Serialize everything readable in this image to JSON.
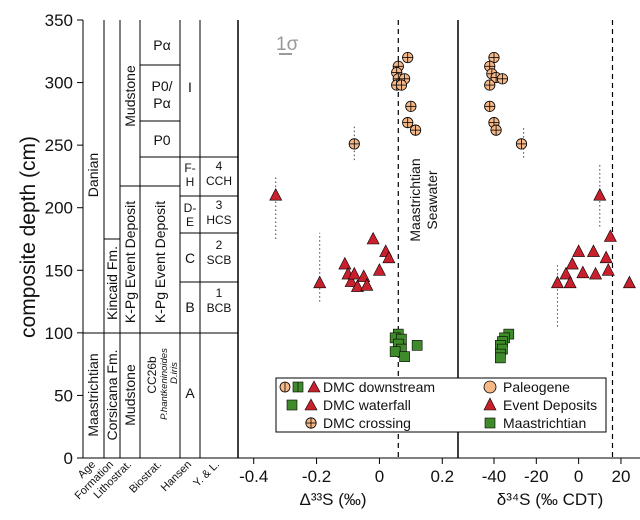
{
  "figure": {
    "ylabel": "composite depth (cm)",
    "yticks": [
      "0",
      "50",
      "100",
      "150",
      "200",
      "250",
      "300",
      "350"
    ],
    "strat_headers": [
      "Age",
      "Formation",
      "Lithostrat.",
      "Biostrat.",
      "Hansen",
      "Y. & L."
    ],
    "age": [
      "Danian",
      "Maastrichtian"
    ],
    "formation": [
      "Kincaid Fm.",
      "Corsicana Fm."
    ],
    "lithostrat": [
      "Mudstone",
      "K-Pg Event Deposit",
      "Mudstone"
    ],
    "biostrat": [
      "Pα",
      "P0/",
      "Pα",
      "P0",
      "K-Pg Event Deposit",
      "CC26b",
      "P.hantkeninoides",
      "D.iris"
    ],
    "hansen": [
      "I",
      "F-",
      "H",
      "D-",
      "E",
      "C",
      "B",
      "A"
    ],
    "yl": [
      "4",
      "CCH",
      "3",
      "HCS",
      "2",
      "SCB",
      "1",
      "BCB"
    ],
    "sigma": "1σ",
    "seawater_label": [
      "Maastrichtian",
      "Seawater"
    ],
    "legend": {
      "downstream": "DMC downstream",
      "waterfall": "DMC waterfall",
      "crossing": "DMC crossing",
      "paleogene": "Paleogene",
      "event": "Event Deposits",
      "maastrichtian": "Maastrichtian"
    },
    "colors": {
      "paleogene": "#f6b887",
      "event": "#c8202c",
      "maastrichtian": "#3f8a2a"
    }
  },
  "chart_data": [
    {
      "type": "scatter",
      "xlabel": "Δ³³S (‰)",
      "ylabel": "composite depth (cm)",
      "xlim": [
        -0.45,
        0.25
      ],
      "ylim": [
        0,
        350
      ],
      "xticks": [
        "-0.4",
        "-0.2",
        "0",
        "0.2"
      ],
      "seawater_x": 0.06,
      "series": [
        {
          "name": "Paleogene",
          "points": [
            [
              0.09,
              320
            ],
            [
              0.06,
              313
            ],
            [
              0.055,
              308
            ],
            [
              0.06,
              303
            ],
            [
              0.08,
              303
            ],
            [
              0.055,
              298
            ],
            [
              0.07,
              298
            ],
            [
              0.1,
              281
            ],
            [
              0.09,
              268
            ],
            [
              0.115,
              262
            ],
            [
              -0.08,
              251
            ]
          ]
        },
        {
          "name": "Event Deposits",
          "points": [
            [
              -0.33,
              210
            ],
            [
              -0.19,
              140
            ],
            [
              0.02,
              165
            ],
            [
              -0.02,
              175
            ],
            [
              -0.11,
              155
            ],
            [
              -0.1,
              147
            ],
            [
              -0.09,
              141
            ],
            [
              -0.08,
              147
            ],
            [
              -0.07,
              137
            ],
            [
              -0.05,
              145
            ],
            [
              -0.04,
              138
            ],
            [
              0.0,
              150
            ],
            [
              0.03,
              160
            ]
          ]
        },
        {
          "name": "Maastrichtian",
          "points": [
            [
              0.06,
              99
            ],
            [
              0.05,
              96
            ],
            [
              0.07,
              95
            ],
            [
              0.06,
              91
            ],
            [
              0.07,
              87
            ],
            [
              0.05,
              85
            ],
            [
              0.08,
              81
            ],
            [
              0.12,
              90
            ]
          ]
        }
      ],
      "error_bars": [
        {
          "x": -0.33,
          "y_range": [
            175,
            225
          ]
        },
        {
          "x": -0.19,
          "y_range": [
            125,
            180
          ]
        },
        {
          "x": -0.08,
          "y_range": [
            238,
            265
          ]
        }
      ]
    },
    {
      "type": "scatter",
      "xlabel": "δ³⁴S (‰ CDT)",
      "xlim": [
        -57,
        29
      ],
      "ylim": [
        0,
        350
      ],
      "xticks": [
        "-40",
        "-20",
        "0",
        "20"
      ],
      "seawater_x": 16,
      "series": [
        {
          "name": "Paleogene",
          "points": [
            [
              -40,
              320
            ],
            [
              -42,
              313
            ],
            [
              -41,
              307
            ],
            [
              -39,
              304
            ],
            [
              -36,
              303
            ],
            [
              -42,
              298
            ],
            [
              -42,
              281
            ],
            [
              -40,
              268
            ],
            [
              -39,
              262
            ],
            [
              -27,
              251
            ]
          ]
        },
        {
          "name": "Event Deposits",
          "points": [
            [
              10,
              210
            ],
            [
              24,
              140
            ],
            [
              7,
              165
            ],
            [
              15,
              177
            ],
            [
              0,
              165
            ],
            [
              -3,
              155
            ],
            [
              -6,
              147
            ],
            [
              -4,
              140
            ],
            [
              8,
              147
            ],
            [
              14,
              150
            ],
            [
              13,
              160
            ],
            [
              -10,
              140
            ],
            [
              2,
              148
            ]
          ]
        },
        {
          "name": "Maastrichtian",
          "points": [
            [
              -33,
              99
            ],
            [
              -35,
              96
            ],
            [
              -36,
              93
            ],
            [
              -37,
              90
            ],
            [
              -36,
              87
            ],
            [
              -37,
              83
            ],
            [
              -37,
              80
            ]
          ]
        }
      ],
      "error_bars": [
        {
          "x": 10,
          "y_range": [
            185,
            235
          ]
        },
        {
          "x": -26,
          "y_range": [
            240,
            264
          ]
        },
        {
          "x": -10,
          "y_range": [
            105,
            155
          ]
        }
      ]
    }
  ]
}
